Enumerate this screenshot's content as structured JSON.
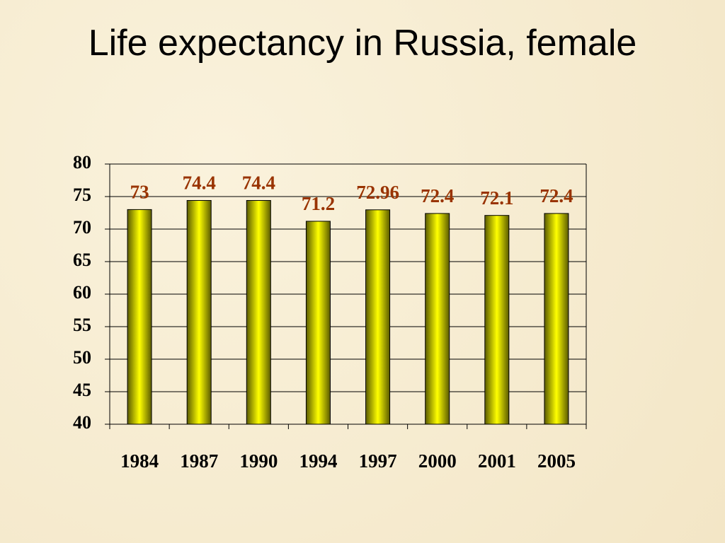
{
  "chart_data": {
    "type": "bar",
    "title": "Life expectancy in Russia, female",
    "categories": [
      "1984",
      "1987",
      "1990",
      "1994",
      "1997",
      "2000",
      "2001",
      "2005"
    ],
    "values": [
      73,
      74.4,
      74.4,
      71.2,
      72.96,
      72.4,
      72.1,
      72.4
    ],
    "color": "#ffff00",
    "label_color": "#993300",
    "ylim": [
      40,
      80
    ],
    "yticks": [
      40,
      45,
      50,
      55,
      60,
      65,
      70,
      75,
      80
    ],
    "grid": true
  }
}
